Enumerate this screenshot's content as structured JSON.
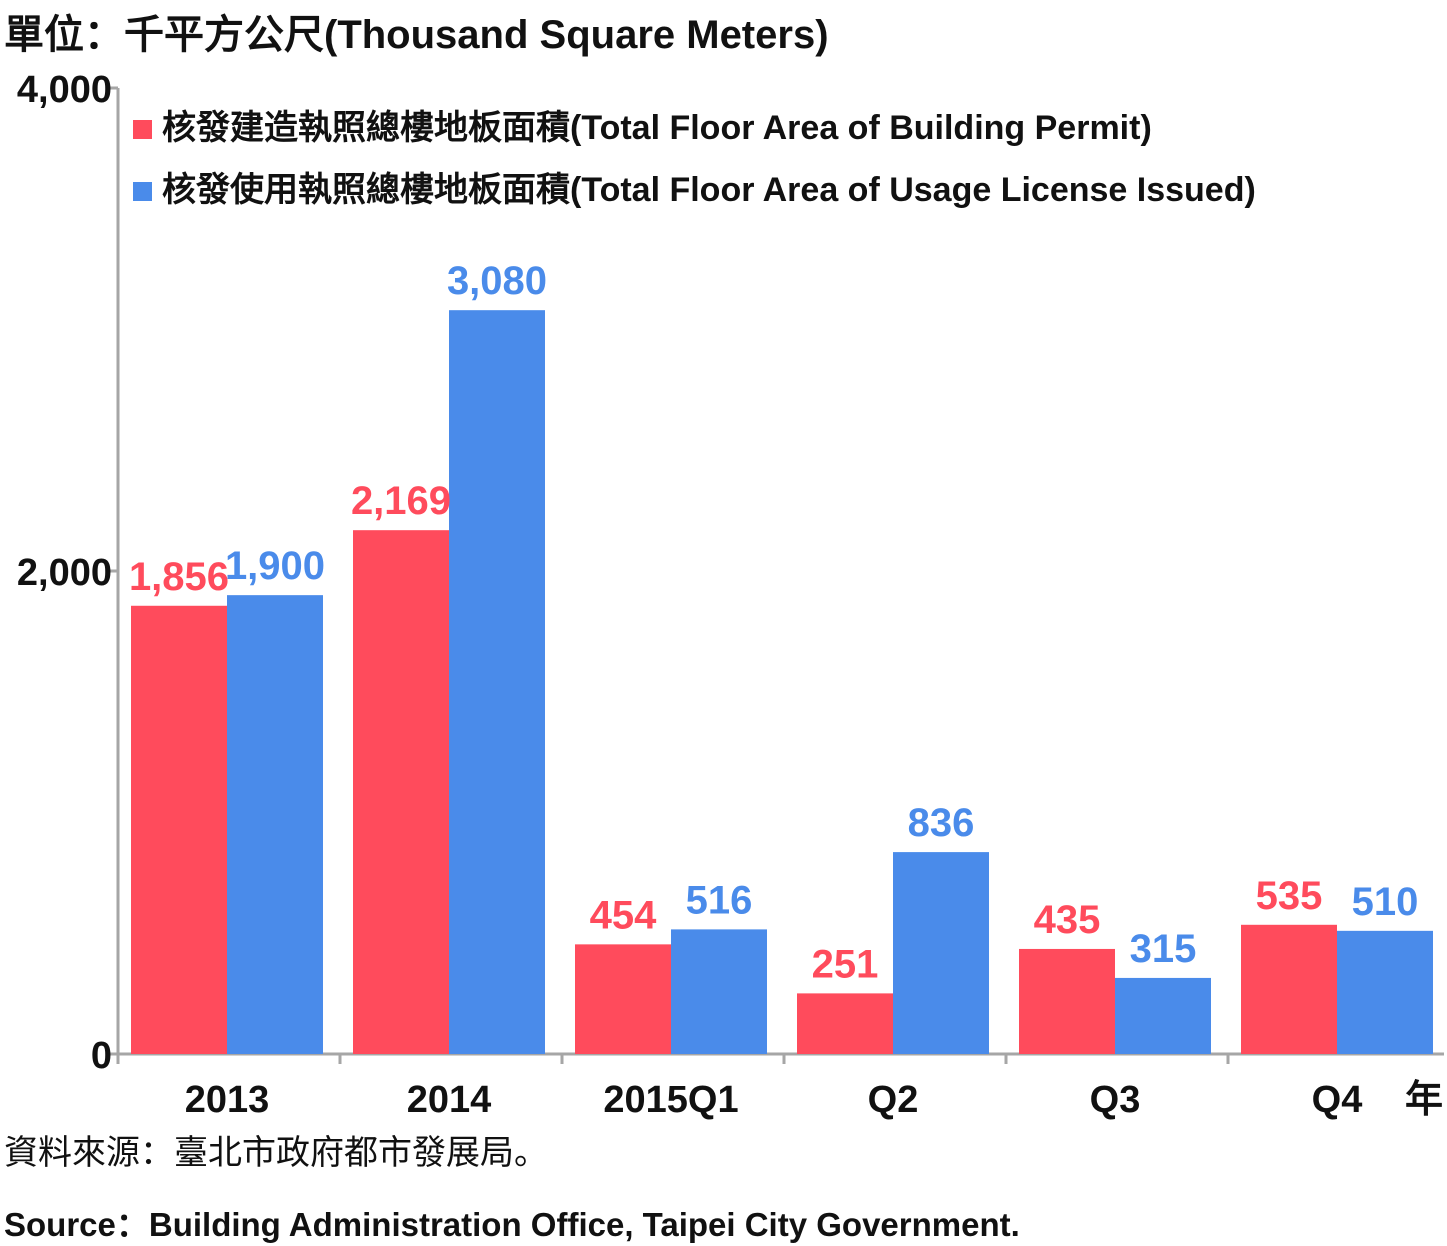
{
  "unit_label": "單位：千平方公尺(Thousand Square Meters)",
  "source_zh": "資料來源：臺北市政府都市發展局。",
  "source_en": "Source：Building Administration Office, Taipei City Government.",
  "chart_data": {
    "type": "bar",
    "categories": [
      "2013",
      "2014",
      "2015Q1",
      "Q2",
      "Q3",
      "Q4"
    ],
    "x_unit_label": "年",
    "ylim": [
      0,
      4000
    ],
    "y_ticks": [
      {
        "value": 0,
        "label": "0"
      },
      {
        "value": 2000,
        "label": "2,000"
      },
      {
        "value": 4000,
        "label": "4,000"
      }
    ],
    "grid": false,
    "legend_position": "top-left",
    "series": [
      {
        "name": "核發建造執照總樓地板面積(Total Floor Area of Building Permit)",
        "color": "#ff4b5c",
        "values": [
          1856,
          2169,
          454,
          251,
          435,
          535
        ],
        "labels": [
          "1,856",
          "2,169",
          "454",
          "251",
          "435",
          "535"
        ]
      },
      {
        "name": "核發使用執照總樓地板面積(Total Floor Area of Usage License Issued)",
        "color": "#4a8bea",
        "values": [
          1900,
          3080,
          516,
          836,
          315,
          510
        ],
        "labels": [
          "1,900",
          "3,080",
          "516",
          "836",
          "315",
          "510"
        ]
      }
    ]
  }
}
